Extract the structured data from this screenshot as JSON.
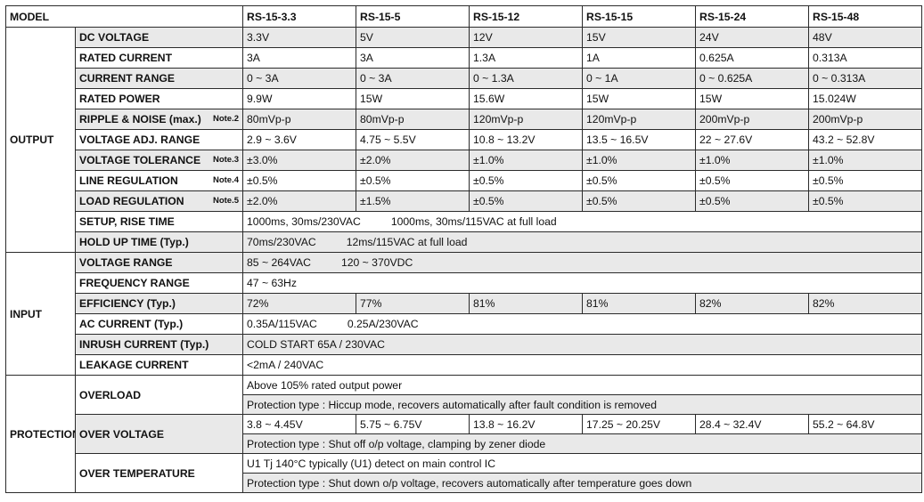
{
  "header": {
    "model_label": "MODEL",
    "models": [
      "RS-15-3.3",
      "RS-15-5",
      "RS-15-12",
      "RS-15-15",
      "RS-15-24",
      "RS-15-48"
    ]
  },
  "output": {
    "section_label": "OUTPUT",
    "dc_voltage": {
      "label": "DC VOLTAGE",
      "values": [
        "3.3V",
        "5V",
        "12V",
        "15V",
        "24V",
        "48V"
      ]
    },
    "rated_current": {
      "label": "RATED CURRENT",
      "values": [
        "3A",
        "3A",
        "1.3A",
        "1A",
        "0.625A",
        "0.313A"
      ]
    },
    "current_range": {
      "label": "CURRENT RANGE",
      "values": [
        "0 ~ 3A",
        "0 ~ 3A",
        "0 ~ 1.3A",
        "0 ~ 1A",
        "0 ~ 0.625A",
        "0 ~ 0.313A"
      ]
    },
    "rated_power": {
      "label": "RATED POWER",
      "values": [
        "9.9W",
        "15W",
        "15.6W",
        "15W",
        "15W",
        "15.024W"
      ]
    },
    "ripple_noise": {
      "label": "RIPPLE & NOISE (max.)",
      "note": "Note.2",
      "values": [
        "80mVp-p",
        "80mVp-p",
        "120mVp-p",
        "120mVp-p",
        "200mVp-p",
        "200mVp-p"
      ]
    },
    "voltage_adj": {
      "label": "VOLTAGE ADJ. RANGE",
      "values": [
        "2.9 ~ 3.6V",
        "4.75 ~ 5.5V",
        "10.8 ~ 13.2V",
        "13.5 ~ 16.5V",
        "22 ~ 27.6V",
        "43.2 ~ 52.8V"
      ]
    },
    "voltage_tolerance": {
      "label": "VOLTAGE TOLERANCE",
      "note": "Note.3",
      "values": [
        "±3.0%",
        "±2.0%",
        "±1.0%",
        "±1.0%",
        "±1.0%",
        "±1.0%"
      ]
    },
    "line_regulation": {
      "label": "LINE REGULATION",
      "note": "Note.4",
      "values": [
        "±0.5%",
        "±0.5%",
        "±0.5%",
        "±0.5%",
        "±0.5%",
        "±0.5%"
      ]
    },
    "load_regulation": {
      "label": "LOAD REGULATION",
      "note": "Note.5",
      "values": [
        "±2.0%",
        "±1.5%",
        "±0.5%",
        "±0.5%",
        "±0.5%",
        "±0.5%"
      ]
    },
    "setup_rise": {
      "label": "SETUP, RISE TIME",
      "value_a": "1000ms, 30ms/230VAC",
      "value_b": "1000ms, 30ms/115VAC at full load"
    },
    "hold_up": {
      "label": "HOLD UP TIME (Typ.)",
      "value_a": "70ms/230VAC",
      "value_b": "12ms/115VAC at full load"
    }
  },
  "input": {
    "section_label": "INPUT",
    "voltage_range": {
      "label": "VOLTAGE RANGE",
      "value_a": "85 ~ 264VAC",
      "value_b": "120 ~ 370VDC"
    },
    "frequency_range": {
      "label": "FREQUENCY RANGE",
      "value": "47 ~ 63Hz"
    },
    "efficiency": {
      "label": "EFFICIENCY (Typ.)",
      "values": [
        "72%",
        "77%",
        "81%",
        "81%",
        "82%",
        "82%"
      ]
    },
    "ac_current": {
      "label": "AC CURRENT (Typ.)",
      "value_a": "0.35A/115VAC",
      "value_b": "0.25A/230VAC"
    },
    "inrush_current": {
      "label": "INRUSH CURRENT (Typ.)",
      "value": "COLD START 65A / 230VAC"
    },
    "leakage_current": {
      "label": "LEAKAGE CURRENT",
      "value": "<2mA / 240VAC"
    }
  },
  "protection": {
    "section_label": "PROTECTION",
    "overload": {
      "label": "OVERLOAD",
      "line1": "Above 105% rated output power",
      "line2": "Protection type : Hiccup mode, recovers automatically after fault condition is removed"
    },
    "over_voltage": {
      "label": "OVER VOLTAGE",
      "values": [
        "3.8 ~ 4.45V",
        "5.75 ~ 6.75V",
        "13.8 ~ 16.2V",
        "17.25 ~ 20.25V",
        "28.4 ~ 32.4V",
        "55.2 ~ 64.8V"
      ],
      "line2": "Protection type : Shut off o/p voltage, clamping by zener diode"
    },
    "over_temperature": {
      "label": "OVER TEMPERATURE",
      "line1": "U1 Tj 140°C typically (U1) detect on main control IC",
      "line2": "Protection type : Shut down o/p voltage, recovers automatically after temperature goes down"
    }
  }
}
